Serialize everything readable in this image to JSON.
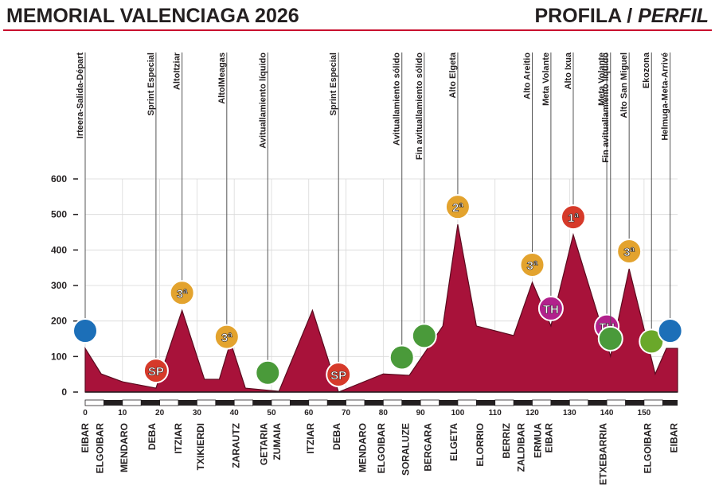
{
  "chart_data": {
    "type": "area",
    "title": "MEMORIAL VALENCIAGA 2026",
    "subtitle": "PROFILA /",
    "subtitle_italic": "PERFIL",
    "x": [
      0,
      4.3,
      10,
      19,
      26,
      32,
      36,
      39,
      43,
      52,
      61,
      68,
      80,
      87,
      96,
      100,
      105,
      115,
      120,
      125,
      131,
      141,
      146,
      153,
      156,
      159
    ],
    "values": [
      123,
      51,
      29,
      11,
      230,
      36,
      36,
      141,
      11,
      2,
      230,
      0,
      51,
      47,
      186,
      472,
      186,
      159,
      309,
      186,
      443,
      101,
      347,
      51,
      123,
      123
    ],
    "color": "#a8123a",
    "xlim": [
      0,
      159
    ],
    "xticks": [
      0,
      10,
      20,
      30,
      40,
      50,
      60,
      70,
      80,
      90,
      100,
      110,
      120,
      130,
      140,
      150
    ],
    "ylim": [
      0,
      600
    ],
    "yticks": [
      0,
      100,
      200,
      300,
      400,
      500,
      600
    ],
    "grid": true,
    "points": [
      {
        "km": 0,
        "label": "Irteera-Salida-Départ",
        "color": "#1c6fb8"
      },
      {
        "km": 19,
        "label": "Sprint Especial",
        "badge": "SP",
        "color": "#d63a2a"
      },
      {
        "km": 26,
        "label": "AltoItziar",
        "badge": "3ª",
        "color": "#e3a32e"
      },
      {
        "km": 38,
        "label": "AltoIMeagas",
        "badge": "3ª",
        "color": "#e3a32e"
      },
      {
        "km": 49,
        "label": "Avituallamiento líquido",
        "color": "#4a9a3a"
      },
      {
        "km": 68,
        "label": "Sprint Especial",
        "badge": "SP",
        "color": "#d63a2a"
      },
      {
        "km": 85,
        "label": "Avituallamiento sólido",
        "color": "#4a9a3a"
      },
      {
        "km": 91,
        "label": "Fin avituallamiento sólido",
        "color": "#4a9a3a"
      },
      {
        "km": 100,
        "label": "Alto Elgeta",
        "badge": "2ª",
        "color": "#e3a32e"
      },
      {
        "km": 120,
        "label": "Alto Areitio",
        "badge": "3ª",
        "color": "#e3a32e"
      },
      {
        "km": 125,
        "label": "Meta Volante",
        "badge": "TH",
        "color": "#b2218c"
      },
      {
        "km": 131,
        "label": "Alto Ixua",
        "badge": "1ª",
        "color": "#d63a2a"
      },
      {
        "km": 140,
        "label": "Meta Volante",
        "badge": "TH",
        "color": "#b2218c"
      },
      {
        "km": 141,
        "label": "Fin avituallamiento líquido",
        "color": "#4a9a3a"
      },
      {
        "km": 146,
        "label": "Alto San Miguel",
        "badge": "3ª",
        "color": "#e3a32e"
      },
      {
        "km": 152,
        "label": "Ekozona",
        "color": "#6aa82a"
      },
      {
        "km": 157,
        "label": "Helmuga-Meta-Arrivé",
        "color": "#1c6fb8"
      }
    ],
    "towns": [
      {
        "km": 0,
        "label": "EIBAR"
      },
      {
        "km": 4,
        "label": "ELGOIBAR"
      },
      {
        "km": 10.5,
        "label": "MENDARO"
      },
      {
        "km": 18,
        "label": "DEBA"
      },
      {
        "km": 25,
        "label": "ITZIAR"
      },
      {
        "km": 31,
        "label": "TXIKIERDI"
      },
      {
        "km": 40.5,
        "label": "ZARAUTZ"
      },
      {
        "km": 48,
        "label": "GETARIA"
      },
      {
        "km": 51.5,
        "label": "ZUMAIA"
      },
      {
        "km": 60.5,
        "label": "ITZIAR"
      },
      {
        "km": 67.5,
        "label": "DEBA"
      },
      {
        "km": 74.5,
        "label": "MENDARO"
      },
      {
        "km": 79.5,
        "label": "ELGOIBAR"
      },
      {
        "km": 86,
        "label": "SORALUZE"
      },
      {
        "km": 92,
        "label": "BERGARA"
      },
      {
        "km": 99,
        "label": "ELGETA"
      },
      {
        "km": 106,
        "label": "ELORRIO"
      },
      {
        "km": 113,
        "label": "BERRIZ"
      },
      {
        "km": 117,
        "label": "ZALDIBAR"
      },
      {
        "km": 121.5,
        "label": "ERMUA"
      },
      {
        "km": 124.5,
        "label": "EIBAR"
      },
      {
        "km": 139,
        "label": "ETXEBARRIA"
      },
      {
        "km": 151,
        "label": "ELGOIBAR"
      },
      {
        "km": 158,
        "label": "EIBAR"
      }
    ]
  }
}
